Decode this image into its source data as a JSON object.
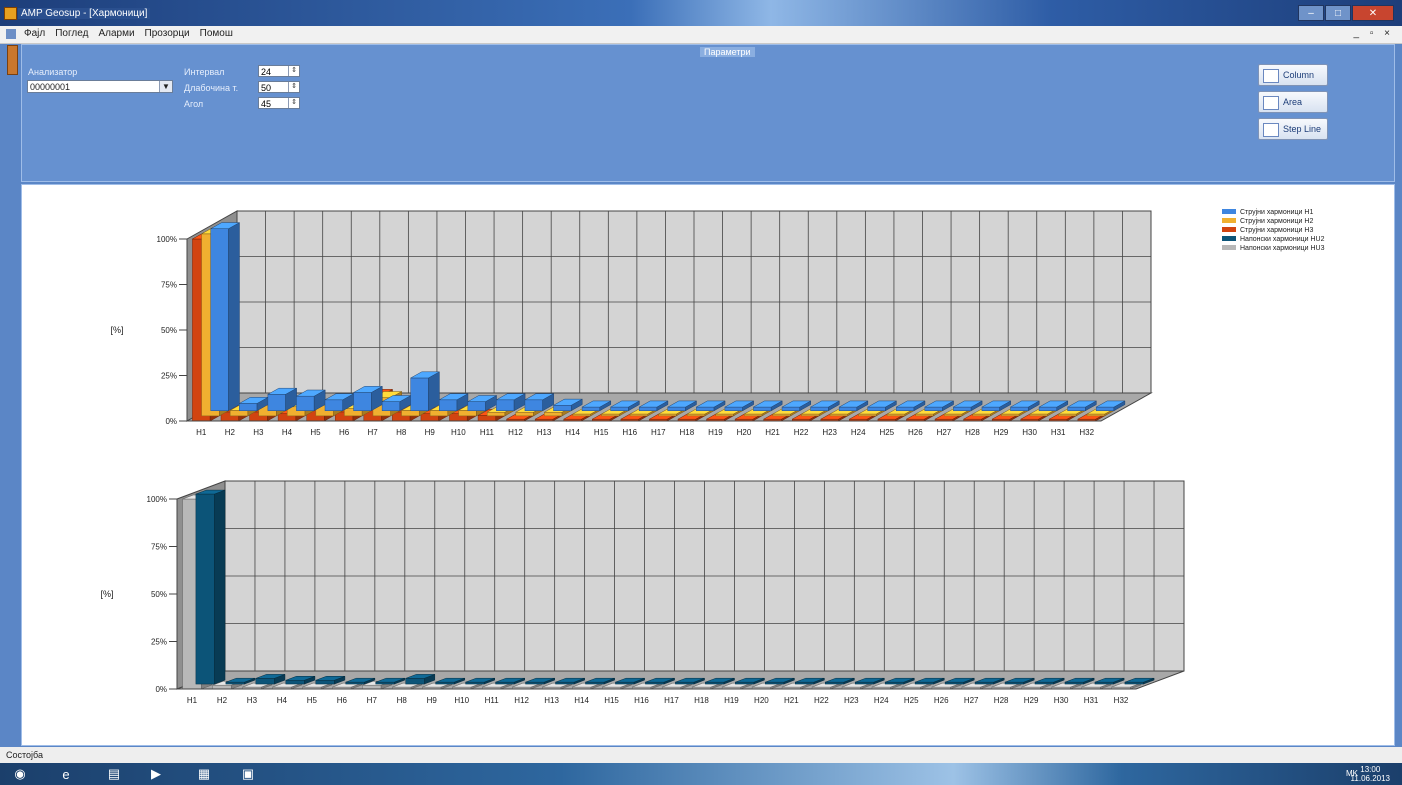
{
  "window": {
    "title": "AMP Geosup - [Хармоници]",
    "minimize": "–",
    "maximize": "□",
    "close": "✕"
  },
  "menu": {
    "items": [
      "Фајл",
      "Поглед",
      "Аларми",
      "Прозорци",
      "Помош"
    ],
    "mdi_controls": "_ ▫ ×"
  },
  "panel": {
    "caption": "Параметри",
    "meter_label": "Анализатор",
    "meter_value": "00000001",
    "interval_label": "Интервал",
    "interval_value": "24",
    "depth_label": "Длабочина т.",
    "depth_value": "50",
    "angle_label": "Агол",
    "angle_value": "45",
    "buttons": {
      "column": "Column",
      "area": "Area",
      "stepline": "Step Line"
    }
  },
  "chart_data": [
    {
      "type": "bar",
      "ylabel": "[%]",
      "ylim": [
        0,
        100
      ],
      "yticks": [
        "0%",
        "25%",
        "50%",
        "75%",
        "100%"
      ],
      "categories": [
        "H1",
        "H2",
        "H3",
        "H4",
        "H5",
        "H6",
        "H7",
        "H8",
        "H9",
        "H10",
        "H11",
        "H12",
        "H13",
        "H14",
        "H15",
        "H16",
        "H17",
        "H18",
        "H19",
        "H20",
        "H21",
        "H22",
        "H23",
        "H24",
        "H25",
        "H26",
        "H27",
        "H28",
        "H29",
        "H30",
        "H31",
        "H32"
      ],
      "legend_position": "top-right",
      "series": [
        {
          "name": "Струјни хармоници H1",
          "color": "#3e86e0",
          "values": [
            100,
            4,
            9,
            8,
            6,
            10,
            5,
            18,
            6,
            5,
            6,
            6,
            3,
            2,
            2,
            2,
            2,
            2,
            2,
            2,
            2,
            2,
            2,
            2,
            2,
            2,
            2,
            2,
            2,
            2,
            2,
            2
          ]
        },
        {
          "name": "Струјни хармоници H2",
          "color": "#f0b030",
          "values": [
            100,
            3,
            6,
            5,
            6,
            4,
            10,
            3,
            3,
            3,
            2,
            2,
            2,
            1,
            1,
            1,
            1,
            1,
            1,
            1,
            1,
            1,
            1,
            1,
            1,
            1,
            1,
            1,
            1,
            1,
            1,
            1
          ]
        },
        {
          "name": "Струјни хармоници H3",
          "color": "#d24410",
          "values": [
            100,
            5,
            5,
            4,
            6,
            5,
            14,
            5,
            4,
            4,
            3,
            1,
            1,
            1,
            1,
            1,
            1,
            1,
            1,
            1,
            1,
            1,
            1,
            1,
            1,
            1,
            1,
            1,
            1,
            1,
            1,
            1
          ]
        }
      ]
    },
    {
      "type": "bar",
      "ylabel": "[%]",
      "ylim": [
        0,
        100
      ],
      "yticks": [
        "0%",
        "25%",
        "50%",
        "75%",
        "100%"
      ],
      "categories": [
        "H1",
        "H2",
        "H3",
        "H4",
        "H5",
        "H6",
        "H7",
        "H8",
        "H9",
        "H10",
        "H11",
        "H12",
        "H13",
        "H14",
        "H15",
        "H16",
        "H17",
        "H18",
        "H19",
        "H20",
        "H21",
        "H22",
        "H23",
        "H24",
        "H25",
        "H26",
        "H27",
        "H28",
        "H29",
        "H30",
        "H31",
        "H32"
      ],
      "series": [
        {
          "name": "Напонски хармоници HU2",
          "color": "#0c5478",
          "values": [
            100,
            1,
            3,
            2,
            2,
            1,
            1,
            3,
            1,
            1,
            1,
            1,
            1,
            1,
            1,
            1,
            1,
            1,
            1,
            1,
            1,
            1,
            1,
            1,
            1,
            1,
            1,
            1,
            1,
            1,
            1,
            1
          ]
        },
        {
          "name": "Напонски хармоници HU3",
          "color": "#b8b8b8",
          "values": [
            100,
            2,
            1,
            1,
            1,
            1,
            2,
            1,
            1,
            1,
            1,
            1,
            1,
            1,
            1,
            1,
            1,
            1,
            1,
            1,
            1,
            1,
            1,
            1,
            1,
            1,
            1,
            1,
            1,
            1,
            1,
            1
          ]
        }
      ]
    }
  ],
  "status": {
    "text": "Состојба"
  },
  "taskbar": {
    "tray_lang": "MK",
    "clock_time": "13:00",
    "clock_date": "11.06.2013"
  }
}
